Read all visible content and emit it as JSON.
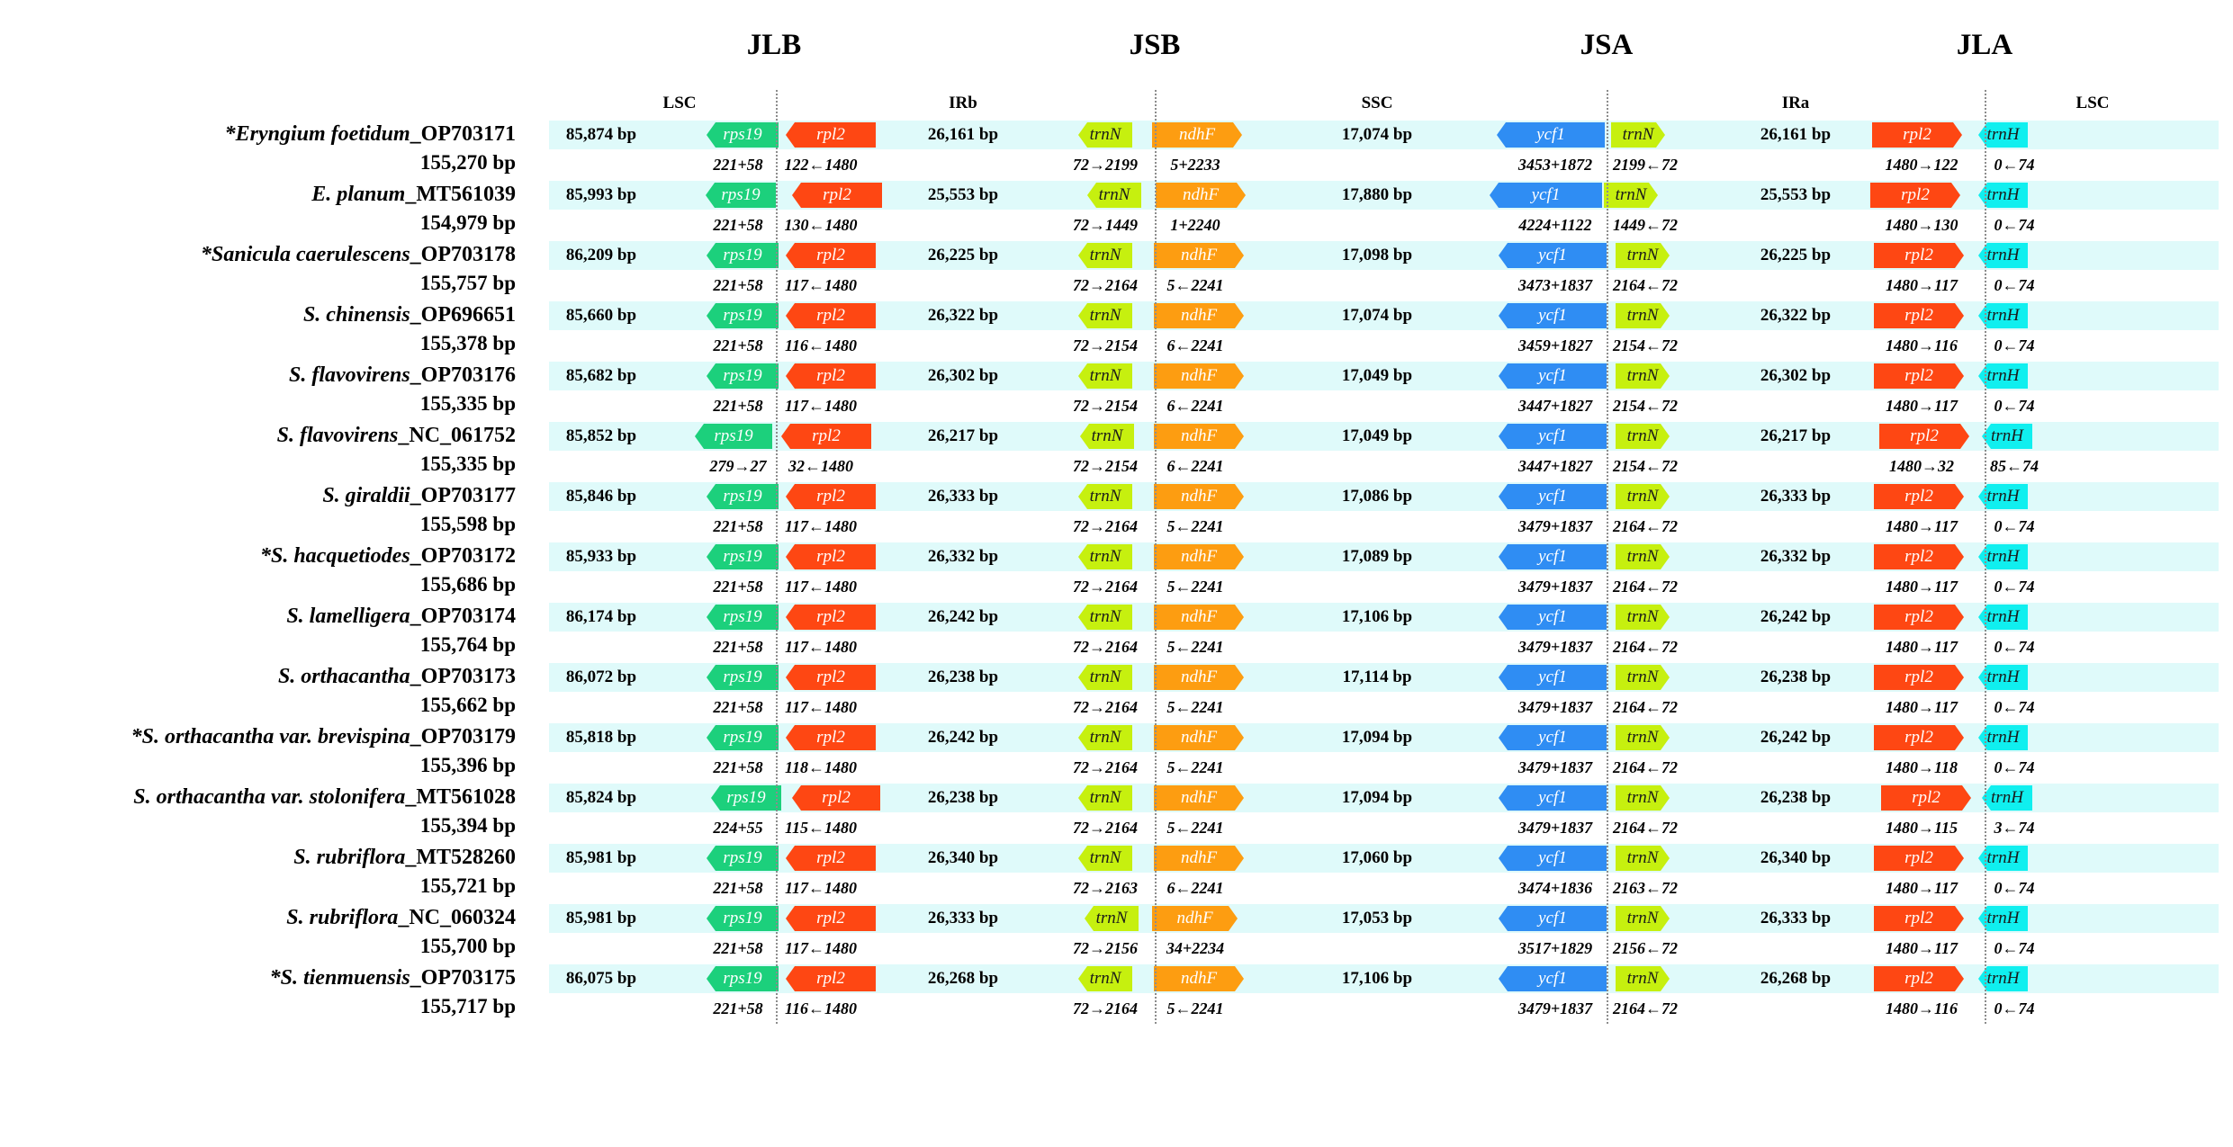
{
  "junctions": [
    {
      "label": "JLB"
    },
    {
      "label": "JSB"
    },
    {
      "label": "JSA"
    },
    {
      "label": "JLA"
    }
  ],
  "regions": [
    "LSC",
    "IRb",
    "SSC",
    "IRa",
    "LSC"
  ],
  "gene_labels": {
    "rps19": "rps19",
    "rpl2": "rpl2",
    "trnN": "trnN",
    "ndhF": "ndhF",
    "ycf1": "ycf1",
    "trnH": "trnH"
  },
  "colors": {
    "band": "#dffafa",
    "rps19": "#1cd07c",
    "rpl2": "#fe4713",
    "trnN": "#c6f00f",
    "ndhF": "#fd9d11",
    "ycf1": "#2f8df3",
    "trnH": "#10efef"
  },
  "species": [
    {
      "name_prefix": "*",
      "name": "Eryngium foetidum",
      "accession": "_OP703171",
      "total": "155,270 bp",
      "lsc": "85,874 bp",
      "irb": "26,161 bp",
      "ssc": "17,074 bp",
      "ira": "26,161 bp",
      "rps19_pos": "221+58",
      "rpl2_pos": "122←1480",
      "trnN_pos": "72→2199",
      "ndhF_pos": "5+2233",
      "ycf1_pos": "3453+1872",
      "trnN2_pos": "2199←72",
      "rpl2b_pos": "1480→122",
      "trnH_pos": "0←74"
    },
    {
      "name_prefix": "",
      "name": "E. planum",
      "accession": "_MT561039",
      "total": "154,979 bp",
      "lsc": "85,993 bp",
      "irb": "25,553 bp",
      "ssc": "17,880 bp",
      "ira": "25,553 bp",
      "rps19_pos": "221+58",
      "rpl2_pos": "130←1480",
      "trnN_pos": "72→1449",
      "ndhF_pos": "1+2240",
      "ycf1_pos": "4224+1122",
      "trnN2_pos": "1449←72",
      "rpl2b_pos": "1480→130",
      "trnH_pos": "0←74"
    },
    {
      "name_prefix": "*",
      "name": "Sanicula caerulescens",
      "accession": "_OP703178",
      "total": "155,757 bp",
      "lsc": "86,209 bp",
      "irb": "26,225 bp",
      "ssc": "17,098 bp",
      "ira": "26,225 bp",
      "rps19_pos": "221+58",
      "rpl2_pos": "117←1480",
      "trnN_pos": "72→2164",
      "ndhF_pos": "5←2241",
      "ycf1_pos": "3473+1837",
      "trnN2_pos": "2164←72",
      "rpl2b_pos": "1480→117",
      "trnH_pos": "0←74"
    },
    {
      "name_prefix": "",
      "name": "S. chinensis",
      "accession": "_OP696651",
      "total": "155,378 bp",
      "lsc": "85,660 bp",
      "irb": "26,322 bp",
      "ssc": "17,074 bp",
      "ira": "26,322 bp",
      "rps19_pos": "221+58",
      "rpl2_pos": "116←1480",
      "trnN_pos": "72→2154",
      "ndhF_pos": "6←2241",
      "ycf1_pos": "3459+1827",
      "trnN2_pos": "2154←72",
      "rpl2b_pos": "1480→116",
      "trnH_pos": "0←74"
    },
    {
      "name_prefix": "",
      "name": "S. flavovirens",
      "accession": "_OP703176",
      "total": "155,335 bp",
      "lsc": "85,682 bp",
      "irb": "26,302 bp",
      "ssc": "17,049 bp",
      "ira": "26,302 bp",
      "rps19_pos": "221+58",
      "rpl2_pos": "117←1480",
      "trnN_pos": "72→2154",
      "ndhF_pos": "6←2241",
      "ycf1_pos": "3447+1827",
      "trnN2_pos": "2154←72",
      "rpl2b_pos": "1480→117",
      "trnH_pos": "0←74"
    },
    {
      "name_prefix": "",
      "name": "S. flavovirens",
      "accession": "_NC_061752",
      "total": "155,335 bp",
      "lsc": "85,852 bp",
      "irb": "26,217 bp",
      "ssc": "17,049 bp",
      "ira": "26,217 bp",
      "rps19_pos": "279→27",
      "rpl2_pos": "32←1480",
      "trnN_pos": "72→2154",
      "ndhF_pos": "6←2241",
      "ycf1_pos": "3447+1827",
      "trnN2_pos": "2154←72",
      "rpl2b_pos": "1480→32",
      "trnH_pos": "85←74"
    },
    {
      "name_prefix": "",
      "name": "S. giraldii",
      "accession": "_OP703177",
      "total": "155,598 bp",
      "lsc": "85,846 bp",
      "irb": "26,333 bp",
      "ssc": "17,086 bp",
      "ira": "26,333 bp",
      "rps19_pos": "221+58",
      "rpl2_pos": "117←1480",
      "trnN_pos": "72→2164",
      "ndhF_pos": "5←2241",
      "ycf1_pos": "3479+1837",
      "trnN2_pos": "2164←72",
      "rpl2b_pos": "1480→117",
      "trnH_pos": "0←74"
    },
    {
      "name_prefix": "*",
      "name": "S. hacquetiodes",
      "accession": "_OP703172",
      "total": "155,686 bp",
      "lsc": "85,933 bp",
      "irb": "26,332 bp",
      "ssc": "17,089 bp",
      "ira": "26,332 bp",
      "rps19_pos": "221+58",
      "rpl2_pos": "117←1480",
      "trnN_pos": "72→2164",
      "ndhF_pos": "5←2241",
      "ycf1_pos": "3479+1837",
      "trnN2_pos": "2164←72",
      "rpl2b_pos": "1480→117",
      "trnH_pos": "0←74"
    },
    {
      "name_prefix": "",
      "name": "S. lamelligera",
      "accession": "_OP703174",
      "total": "155,764 bp",
      "lsc": "86,174 bp",
      "irb": "26,242 bp",
      "ssc": "17,106 bp",
      "ira": "26,242 bp",
      "rps19_pos": "221+58",
      "rpl2_pos": "117←1480",
      "trnN_pos": "72→2164",
      "ndhF_pos": "5←2241",
      "ycf1_pos": "3479+1837",
      "trnN2_pos": "2164←72",
      "rpl2b_pos": "1480→117",
      "trnH_pos": "0←74"
    },
    {
      "name_prefix": "",
      "name": "S. orthacantha",
      "accession": "_OP703173",
      "total": "155,662 bp",
      "lsc": "86,072 bp",
      "irb": "26,238 bp",
      "ssc": "17,114 bp",
      "ira": "26,238 bp",
      "rps19_pos": "221+58",
      "rpl2_pos": "117←1480",
      "trnN_pos": "72→2164",
      "ndhF_pos": "5←2241",
      "ycf1_pos": "3479+1837",
      "trnN2_pos": "2164←72",
      "rpl2b_pos": "1480→117",
      "trnH_pos": "0←74"
    },
    {
      "name_prefix": "*",
      "name": "S. orthacantha var. brevispina",
      "accession": "_OP703179",
      "total": "155,396 bp",
      "lsc": "85,818 bp",
      "irb": "26,242 bp",
      "ssc": "17,094 bp",
      "ira": "26,242 bp",
      "rps19_pos": "221+58",
      "rpl2_pos": "118←1480",
      "trnN_pos": "72→2164",
      "ndhF_pos": "5←2241",
      "ycf1_pos": "3479+1837",
      "trnN2_pos": "2164←72",
      "rpl2b_pos": "1480→118",
      "trnH_pos": "0←74"
    },
    {
      "name_prefix": "",
      "name": "S. orthacantha var. stolonifera",
      "accession": "_MT561028",
      "total": "155,394 bp",
      "lsc": "85,824 bp",
      "irb": "26,238 bp",
      "ssc": "17,094 bp",
      "ira": "26,238 bp",
      "rps19_pos": "224+55",
      "rpl2_pos": "115←1480",
      "trnN_pos": "72→2164",
      "ndhF_pos": "5←2241",
      "ycf1_pos": "3479+1837",
      "trnN2_pos": "2164←72",
      "rpl2b_pos": "1480→115",
      "trnH_pos": "3←74"
    },
    {
      "name_prefix": "",
      "name": "S. rubriflora",
      "accession": "_MT528260",
      "total": "155,721 bp",
      "lsc": "85,981 bp",
      "irb": "26,340 bp",
      "ssc": "17,060 bp",
      "ira": "26,340 bp",
      "rps19_pos": "221+58",
      "rpl2_pos": "117←1480",
      "trnN_pos": "72→2163",
      "ndhF_pos": "6←2241",
      "ycf1_pos": "3474+1836",
      "trnN2_pos": "2163←72",
      "rpl2b_pos": "1480→117",
      "trnH_pos": "0←74"
    },
    {
      "name_prefix": "",
      "name": "S. rubriflora",
      "accession": "_NC_060324",
      "total": "155,700 bp",
      "lsc": "85,981 bp",
      "irb": "26,333 bp",
      "ssc": "17,053 bp",
      "ira": "26,333 bp",
      "rps19_pos": "221+58",
      "rpl2_pos": "117←1480",
      "trnN_pos": "72→2156",
      "ndhF_pos": "34+2234",
      "ycf1_pos": "3517+1829",
      "trnN2_pos": "2156←72",
      "rpl2b_pos": "1480→117",
      "trnH_pos": "0←74"
    },
    {
      "name_prefix": "*",
      "name": "S. tienmuensis",
      "accession": "_OP703175",
      "total": "155,717 bp",
      "lsc": "86,075 bp",
      "irb": "26,268 bp",
      "ssc": "17,106 bp",
      "ira": "26,268 bp",
      "rps19_pos": "221+58",
      "rpl2_pos": "116←1480",
      "trnN_pos": "72→2164",
      "ndhF_pos": "5←2241",
      "ycf1_pos": "3479+1837",
      "trnN2_pos": "2164←72",
      "rpl2b_pos": "1480→116",
      "trnH_pos": "0←74"
    }
  ]
}
